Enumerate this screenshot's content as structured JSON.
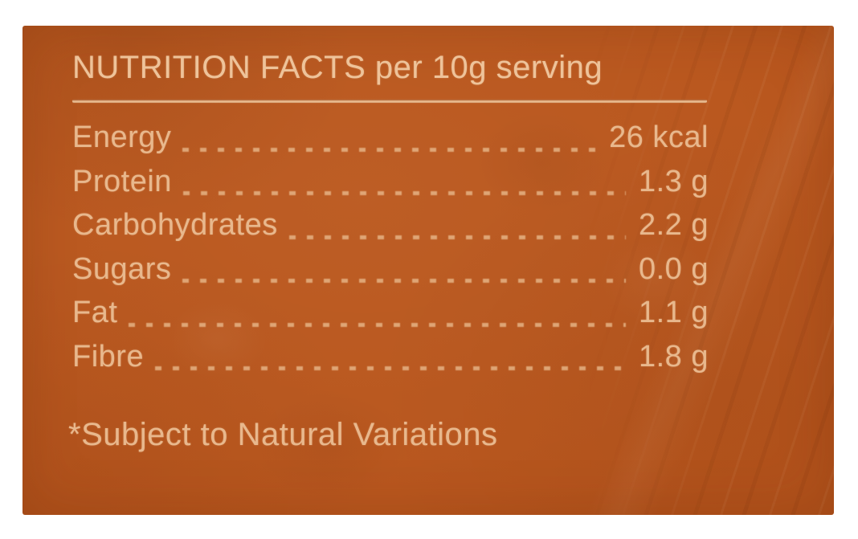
{
  "label": {
    "title": "NUTRITION FACTS per 10g serving",
    "rows": [
      {
        "label": "Energy",
        "value": "26 kcal"
      },
      {
        "label": "Protein",
        "value": "1.3 g"
      },
      {
        "label": "Carbohydrates",
        "value": "2.2 g"
      },
      {
        "label": "Sugars",
        "value": "0.0 g"
      },
      {
        "label": "Fat",
        "value": "1.1 g"
      },
      {
        "label": "Fibre",
        "value": "1.8 g"
      }
    ],
    "footnote": "*Subject to Natural Variations"
  },
  "colors": {
    "page-bg": "#ffffff",
    "panel-bg": "#b8551c",
    "ink": "#e8b88d",
    "ink-title": "#eec39a"
  }
}
